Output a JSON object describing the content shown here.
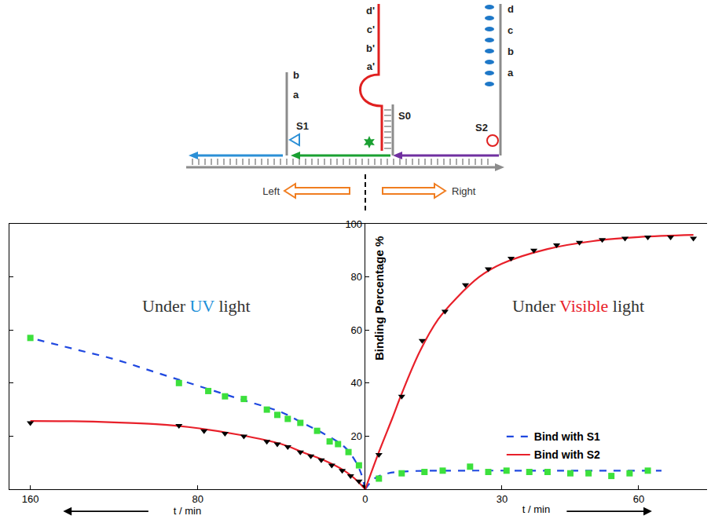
{
  "diagram": {
    "S0": {
      "label": "S0",
      "domains": [
        "d'",
        "c'",
        "b'",
        "a'"
      ]
    },
    "S1": {
      "label": "S1",
      "domains": [
        "b",
        "a"
      ]
    },
    "S2": {
      "label": "S2",
      "domains": [
        "d",
        "c",
        "b",
        "a"
      ]
    },
    "directions": [
      "Left",
      "Right"
    ]
  },
  "chart_data": [
    {
      "type": "line",
      "x_label": "t / min",
      "xlim": [
        170,
        0
      ],
      "xticks": [
        160,
        80
      ],
      "ylim": [
        0,
        100
      ],
      "yticks": [
        20,
        40,
        60,
        80,
        100
      ],
      "tick_labels": "x",
      "grid": false,
      "annotations": [
        {
          "segments": [
            {
              "text": "Under "
            },
            {
              "text": "UV",
              "color": "#1b8fd8"
            },
            {
              "text": " light"
            }
          ]
        }
      ],
      "series": [
        {
          "name": "Bind with S1",
          "type": "line",
          "line_style": "dash",
          "color": "#1f48e0",
          "x": [
            0,
            2,
            5,
            10,
            20,
            30,
            40,
            60,
            80,
            100,
            120,
            140,
            160
          ],
          "values": [
            0,
            6,
            11,
            16,
            21,
            25,
            29,
            34,
            39,
            44,
            49,
            53,
            57
          ]
        },
        {
          "name": "Bind with S2",
          "type": "line",
          "line_style": "solid",
          "color": "#e8202a",
          "x": [
            0,
            5,
            10,
            20,
            30,
            40,
            60,
            80,
            100,
            120,
            140,
            160
          ],
          "values": [
            0,
            4,
            7,
            11,
            14,
            17,
            20.5,
            23,
            24.5,
            25.2,
            25.6,
            25.7
          ]
        },
        {
          "type": "scatter",
          "marker": "square",
          "color": "#3ce03c",
          "x": [
            160,
            89,
            75,
            67,
            58,
            47,
            42,
            37,
            31,
            23,
            17,
            13,
            8,
            3
          ],
          "values": [
            57,
            40,
            37,
            35,
            34,
            30,
            28,
            26.5,
            25,
            22,
            18,
            17,
            14,
            9
          ]
        },
        {
          "type": "scatter",
          "marker": "triangle-down",
          "color": "#000000",
          "x": [
            160,
            89,
            77,
            67,
            58,
            47,
            42,
            37,
            31,
            26,
            21,
            16,
            11,
            7,
            3,
            0
          ],
          "values": [
            25,
            24,
            22,
            21,
            20,
            18,
            17,
            16,
            14,
            12.5,
            11,
            9,
            7,
            5,
            3,
            1
          ]
        }
      ]
    },
    {
      "type": "line",
      "x_label": "t / min",
      "y_label": "Binding Percentage %",
      "xlim": [
        0,
        75
      ],
      "xticks": [
        0,
        30,
        60
      ],
      "ylim": [
        0,
        100
      ],
      "yticks": [
        20,
        40,
        60,
        80,
        100
      ],
      "grid": false,
      "legend": "right",
      "annotations": [
        {
          "segments": [
            {
              "text": "Under "
            },
            {
              "text": "Visible",
              "color": "#e8202a"
            },
            {
              "text": " light"
            }
          ]
        }
      ],
      "series": [
        {
          "name": "Bind with S1",
          "type": "line",
          "line_style": "dash",
          "color": "#1f48e0",
          "x": [
            0,
            2,
            5,
            10,
            20,
            40,
            65
          ],
          "values": [
            0,
            4,
            6,
            6.8,
            7,
            7,
            7
          ]
        },
        {
          "name": "Bind with S2",
          "type": "line",
          "line_style": "solid",
          "color": "#e8202a",
          "x": [
            0,
            3,
            6,
            8,
            12,
            16,
            20,
            25,
            30,
            40,
            50,
            60,
            72
          ],
          "values": [
            0,
            14,
            27,
            36,
            52,
            64,
            72,
            80,
            85,
            90.5,
            93.5,
            95,
            95.8
          ]
        },
        {
          "type": "scatter",
          "marker": "square",
          "color": "#3ce03c",
          "x": [
            3,
            8,
            13,
            17,
            23,
            27,
            31,
            36,
            40,
            45,
            49,
            54,
            58,
            62
          ],
          "values": [
            4,
            6,
            6.5,
            7,
            8.5,
            6.5,
            7,
            6.5,
            6.5,
            6,
            6,
            5,
            6,
            7
          ]
        },
        {
          "type": "scatter",
          "marker": "triangle-down",
          "color": "#000000",
          "x": [
            3,
            8,
            12.5,
            17.5,
            22,
            27,
            32,
            37,
            42,
            47,
            52,
            57,
            62,
            67,
            72
          ],
          "values": [
            13,
            35,
            56,
            67,
            77,
            83,
            87,
            90,
            92,
            93,
            94,
            94.5,
            95,
            95,
            94.5
          ]
        }
      ]
    }
  ]
}
